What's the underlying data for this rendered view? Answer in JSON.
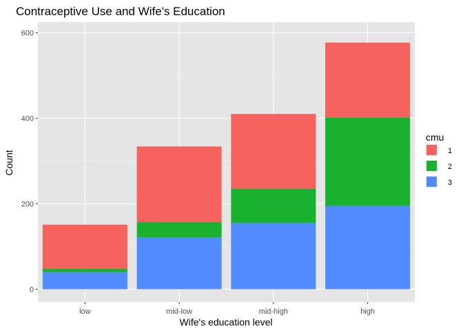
{
  "chart_data": {
    "type": "bar",
    "stacked": true,
    "title": "Contraceptive Use and Wife's Education",
    "xlabel": "Wife's education level",
    "ylabel": "Count",
    "categories": [
      "low",
      "mid-low",
      "mid-high",
      "high"
    ],
    "ylim": [
      -30,
      625
    ],
    "yticks": [
      0,
      200,
      400,
      600
    ],
    "grid": true,
    "legend": {
      "title": "cmu",
      "placement": "right"
    },
    "series": [
      {
        "name": "3",
        "color": "#528bff",
        "values": [
          40,
          121,
          155,
          195
        ]
      },
      {
        "name": "2",
        "color": "#1ab12e",
        "values": [
          8,
          36,
          80,
          207
        ]
      },
      {
        "name": "1",
        "color": "#f6625d",
        "values": [
          103,
          177,
          175,
          175
        ]
      }
    ],
    "legend_order": [
      "1",
      "2",
      "3"
    ]
  }
}
